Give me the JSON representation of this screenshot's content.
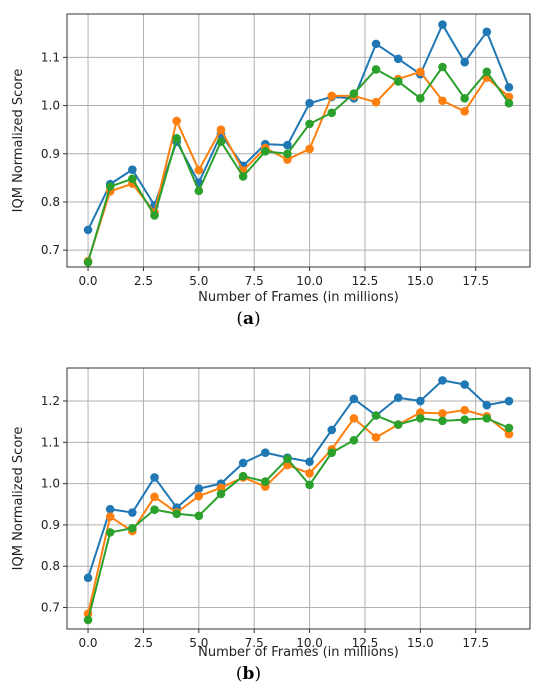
{
  "colors": {
    "series_1": "#1f77b4",
    "series_2": "#ff7f0e",
    "series_3": "#2ca02c",
    "grid": "#b0b0b0"
  },
  "chart_data": [
    {
      "type": "line",
      "panel_label": "a",
      "xlabel": "Number of Frames (in millions)",
      "ylabel": "IQM Normalized Score",
      "xlim": [
        -0.95,
        19.95
      ],
      "ylim": [
        0.665,
        1.19
      ],
      "xticks": [
        0.0,
        2.5,
        5.0,
        7.5,
        10.0,
        12.5,
        15.0,
        17.5
      ],
      "xtick_labels": [
        "0.0",
        "2.5",
        "5.0",
        "7.5",
        "10.0",
        "12.5",
        "15.0",
        "17.5"
      ],
      "yticks": [
        0.7,
        0.8,
        0.9,
        1.0,
        1.1
      ],
      "ytick_labels": [
        "0.7",
        "0.8",
        "0.9",
        "1.0",
        "1.1"
      ],
      "grid": true,
      "x": [
        0,
        1,
        2,
        3,
        4,
        5,
        6,
        7,
        8,
        9,
        10,
        11,
        12,
        13,
        14,
        15,
        16,
        17,
        18,
        19
      ],
      "series": [
        {
          "color_key": "series_1",
          "values": [
            0.742,
            0.837,
            0.867,
            0.793,
            0.925,
            0.84,
            0.94,
            0.875,
            0.92,
            0.918,
            1.005,
            1.018,
            1.015,
            1.128,
            1.097,
            1.065,
            1.168,
            1.09,
            1.153,
            1.038
          ]
        },
        {
          "color_key": "series_2",
          "values": [
            0.677,
            0.822,
            0.838,
            0.778,
            0.968,
            0.866,
            0.95,
            0.865,
            0.912,
            0.888,
            0.91,
            1.02,
            1.02,
            1.007,
            1.055,
            1.07,
            1.01,
            0.988,
            1.058,
            1.018
          ]
        },
        {
          "color_key": "series_3",
          "values": [
            0.675,
            0.832,
            0.848,
            0.772,
            0.932,
            0.823,
            0.925,
            0.853,
            0.905,
            0.9,
            0.962,
            0.985,
            1.025,
            1.075,
            1.05,
            1.015,
            1.08,
            1.015,
            1.07,
            1.005
          ]
        }
      ]
    },
    {
      "type": "line",
      "panel_label": "b",
      "xlabel": "Number of Frames (in millions)",
      "ylabel": "IQM Normalized Score",
      "xlim": [
        -0.95,
        19.95
      ],
      "ylim": [
        0.648,
        1.28
      ],
      "xticks": [
        0.0,
        2.5,
        5.0,
        7.5,
        10.0,
        12.5,
        15.0,
        17.5
      ],
      "xtick_labels": [
        "0.0",
        "2.5",
        "5.0",
        "7.5",
        "10.0",
        "12.5",
        "15.0",
        "17.5"
      ],
      "yticks": [
        0.7,
        0.8,
        0.9,
        1.0,
        1.1,
        1.2
      ],
      "ytick_labels": [
        "0.7",
        "0.8",
        "0.9",
        "1.0",
        "1.1",
        "1.2"
      ],
      "grid": true,
      "x": [
        0,
        1,
        2,
        3,
        4,
        5,
        6,
        7,
        8,
        9,
        10,
        11,
        12,
        13,
        14,
        15,
        16,
        17,
        18,
        19
      ],
      "series": [
        {
          "color_key": "series_1",
          "values": [
            0.772,
            0.938,
            0.93,
            1.015,
            0.942,
            0.988,
            1.0,
            1.05,
            1.075,
            1.063,
            1.053,
            1.13,
            1.205,
            1.165,
            1.208,
            1.2,
            1.25,
            1.24,
            1.19,
            1.2
          ]
        },
        {
          "color_key": "series_2",
          "values": [
            0.685,
            0.92,
            0.885,
            0.968,
            0.93,
            0.97,
            0.99,
            1.015,
            0.993,
            1.045,
            1.025,
            1.083,
            1.158,
            1.112,
            1.143,
            1.172,
            1.17,
            1.178,
            1.163,
            1.12
          ]
        },
        {
          "color_key": "series_3",
          "values": [
            0.67,
            0.882,
            0.892,
            0.937,
            0.927,
            0.922,
            0.975,
            1.018,
            1.005,
            1.06,
            0.997,
            1.075,
            1.105,
            1.165,
            1.143,
            1.158,
            1.152,
            1.155,
            1.158,
            1.135
          ]
        }
      ]
    }
  ]
}
